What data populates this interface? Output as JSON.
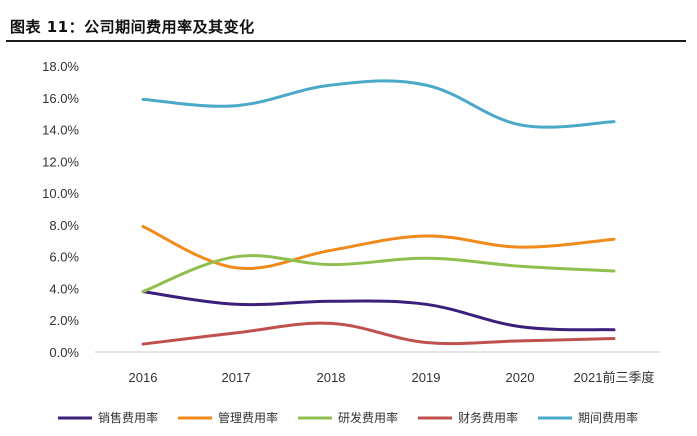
{
  "header": {
    "title": "图表 11：公司期间费用率及其变化"
  },
  "chart_data": {
    "type": "line",
    "title": "图表 11：公司期间费用率及其变化",
    "xlabel": "",
    "ylabel": "",
    "categories": [
      "2016",
      "2017",
      "2018",
      "2019",
      "2020",
      "2021前三季度"
    ],
    "ylim": [
      0,
      18
    ],
    "y_ticks": [
      "0.0%",
      "2.0%",
      "4.0%",
      "6.0%",
      "8.0%",
      "10.0%",
      "12.0%",
      "14.0%",
      "16.0%",
      "18.0%"
    ],
    "grid": false,
    "legend": "bottom",
    "series": [
      {
        "name": "销售费用率",
        "color": "#3b1f7a",
        "values": [
          3.8,
          3.0,
          3.2,
          3.0,
          1.6,
          1.4
        ]
      },
      {
        "name": "管理费用率",
        "color": "#f08a1c",
        "values": [
          7.9,
          5.3,
          6.4,
          7.3,
          6.6,
          7.1
        ]
      },
      {
        "name": "研发费用率",
        "color": "#8fbf4e",
        "values": [
          3.8,
          6.0,
          5.5,
          5.9,
          5.4,
          5.1
        ]
      },
      {
        "name": "财务费用率",
        "color": "#c0504d",
        "values": [
          0.5,
          1.2,
          1.8,
          0.6,
          0.7,
          0.85
        ]
      },
      {
        "name": "期间费用率",
        "color": "#4aa8c8",
        "values": [
          15.9,
          15.5,
          16.8,
          16.8,
          14.3,
          14.5
        ]
      }
    ]
  }
}
